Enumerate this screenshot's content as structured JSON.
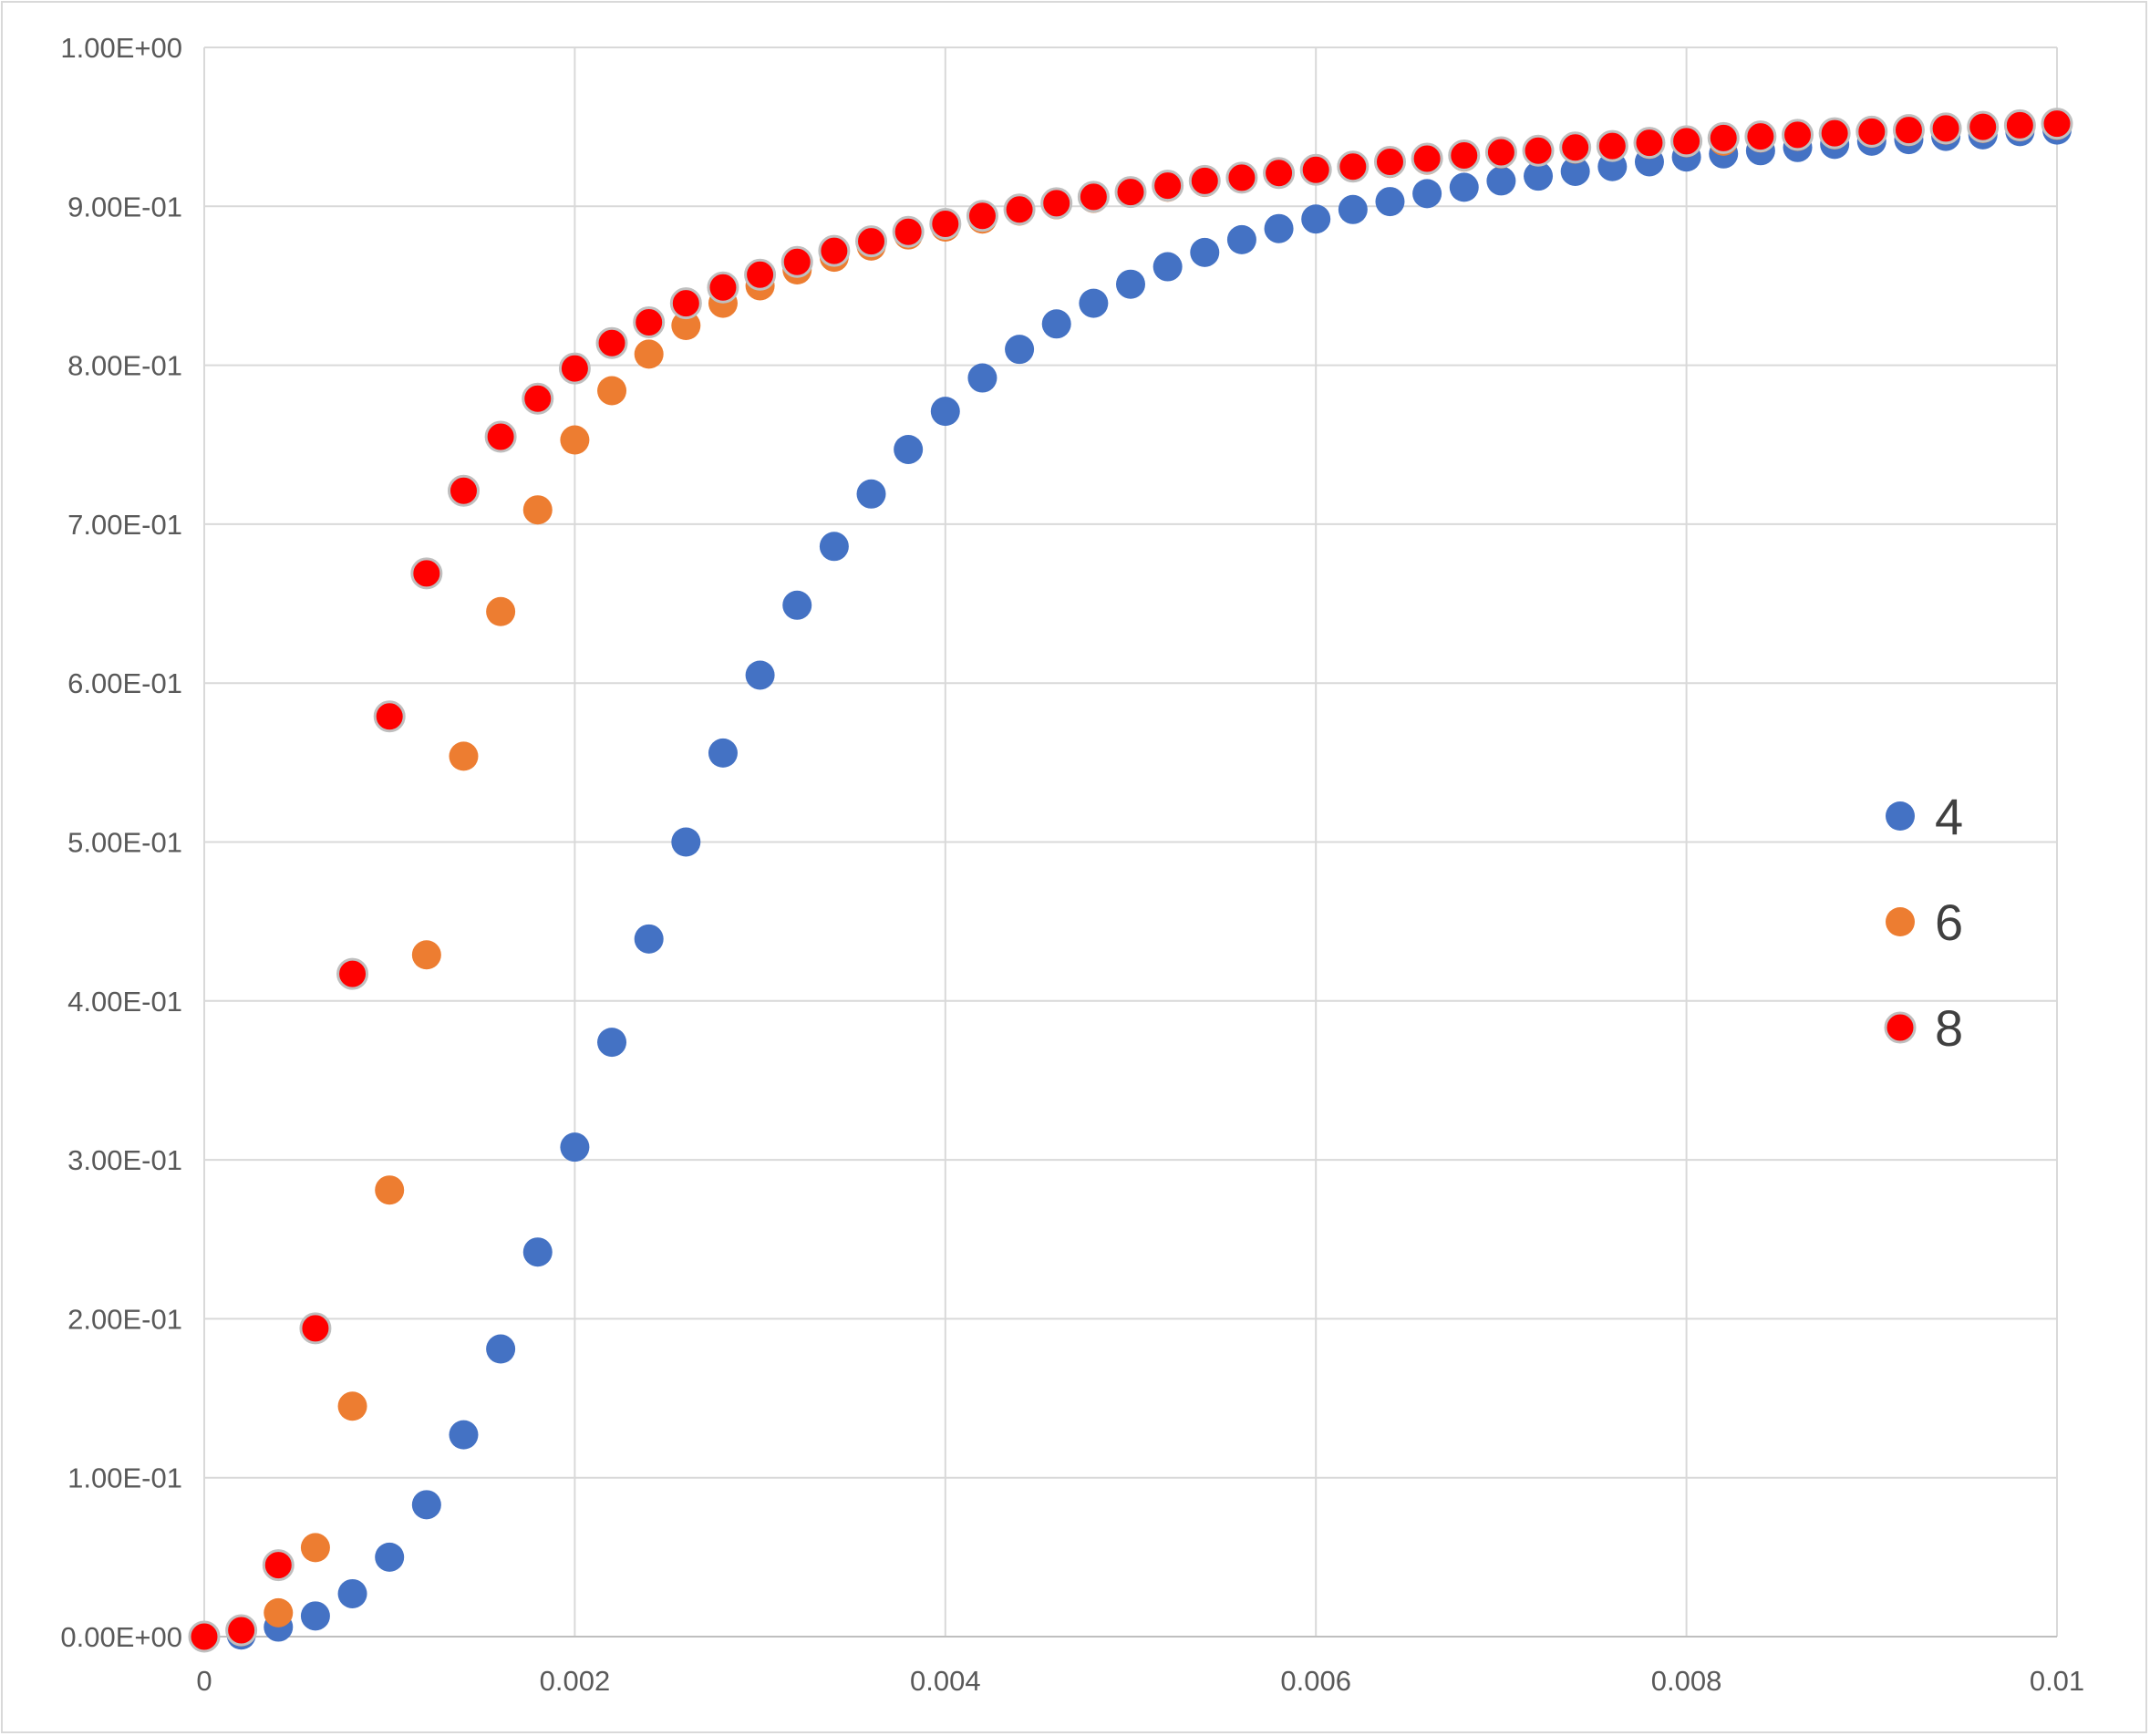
{
  "chart_data": {
    "type": "scatter",
    "title": "",
    "xlabel": "",
    "ylabel": "",
    "xlim": [
      0,
      0.01
    ],
    "ylim": [
      0,
      1
    ],
    "grid": true,
    "legend_position": "right",
    "x_ticks": [
      "0",
      "0.002",
      "0.004",
      "0.006",
      "0.008",
      "0.01"
    ],
    "y_ticks": [
      "0.00E+00",
      "1.00E-01",
      "2.00E-01",
      "3.00E-01",
      "4.00E-01",
      "5.00E-01",
      "6.00E-01",
      "7.00E-01",
      "8.00E-01",
      "9.00E-01",
      "1.00E+00"
    ],
    "series": [
      {
        "name": "4",
        "color": "#4472C4",
        "x": [
          0,
          0.0002,
          0.0004,
          0.0006,
          0.0008,
          0.001,
          0.0012,
          0.0014,
          0.0016,
          0.0018,
          0.002,
          0.0022,
          0.0024,
          0.0026,
          0.0028,
          0.003,
          0.0032,
          0.0034,
          0.0036,
          0.0038,
          0.004,
          0.0042,
          0.0044,
          0.0046,
          0.0048,
          0.005,
          0.0052,
          0.0054,
          0.0056,
          0.0058,
          0.006,
          0.0062,
          0.0064,
          0.0066,
          0.0068,
          0.007,
          0.0072,
          0.0074,
          0.0076,
          0.0078,
          0.008,
          0.0082,
          0.0084,
          0.0086,
          0.0088,
          0.009,
          0.0092,
          0.0094,
          0.0096,
          0.0098,
          0.01
        ],
        "y": [
          0.0,
          0.001,
          0.006,
          0.013,
          0.027,
          0.05,
          0.083,
          0.127,
          0.181,
          0.242,
          0.308,
          0.374,
          0.439,
          0.5,
          0.556,
          0.605,
          0.649,
          0.686,
          0.719,
          0.747,
          0.771,
          0.792,
          0.81,
          0.826,
          0.839,
          0.851,
          0.862,
          0.871,
          0.879,
          0.886,
          0.892,
          0.898,
          0.903,
          0.908,
          0.912,
          0.916,
          0.919,
          0.922,
          0.925,
          0.928,
          0.931,
          0.933,
          0.935,
          0.937,
          0.939,
          0.941,
          0.942,
          0.944,
          0.945,
          0.947,
          0.948
        ]
      },
      {
        "name": "6",
        "color": "#ED7D31",
        "x": [
          0,
          0.0002,
          0.0004,
          0.0006,
          0.0008,
          0.001,
          0.0012,
          0.0014,
          0.0016,
          0.0018,
          0.002,
          0.0022,
          0.0024,
          0.0026,
          0.0028,
          0.003,
          0.0032,
          0.0034,
          0.0036,
          0.0038,
          0.004,
          0.0042,
          0.0044,
          0.0046,
          0.0048,
          0.005,
          0.0052,
          0.0054,
          0.0056,
          0.0058,
          0.006,
          0.0062,
          0.0064,
          0.0066,
          0.0068,
          0.007,
          0.0072,
          0.0074,
          0.0076,
          0.0078,
          0.008,
          0.0082,
          0.0084,
          0.0086,
          0.0088,
          0.009,
          0.0092,
          0.0094,
          0.0096,
          0.0098,
          0.01
        ],
        "y": [
          0.0,
          0.003,
          0.015,
          0.056,
          0.145,
          0.281,
          0.429,
          0.554,
          0.645,
          0.709,
          0.753,
          0.784,
          0.807,
          0.825,
          0.839,
          0.85,
          0.86,
          0.868,
          0.875,
          0.882,
          0.887,
          0.892,
          0.897,
          0.901,
          0.905,
          0.909,
          0.912,
          0.915,
          0.918,
          0.921,
          0.923,
          0.925,
          0.927,
          0.929,
          0.931,
          0.933,
          0.935,
          0.936,
          0.938,
          0.939,
          0.94,
          0.941,
          0.943,
          0.944,
          0.945,
          0.946,
          0.947,
          0.948,
          0.949,
          0.95,
          0.951
        ]
      },
      {
        "name": "8",
        "color": "#FF0000",
        "x": [
          0,
          0.0002,
          0.0004,
          0.0006,
          0.0008,
          0.001,
          0.0012,
          0.0014,
          0.0016,
          0.0018,
          0.002,
          0.0022,
          0.0024,
          0.0026,
          0.0028,
          0.003,
          0.0032,
          0.0034,
          0.0036,
          0.0038,
          0.004,
          0.0042,
          0.0044,
          0.0046,
          0.0048,
          0.005,
          0.0052,
          0.0054,
          0.0056,
          0.0058,
          0.006,
          0.0062,
          0.0064,
          0.0066,
          0.0068,
          0.007,
          0.0072,
          0.0074,
          0.0076,
          0.0078,
          0.008,
          0.0082,
          0.0084,
          0.0086,
          0.0088,
          0.009,
          0.0092,
          0.0094,
          0.0096,
          0.0098,
          0.01
        ],
        "y": [
          0.0,
          0.004,
          0.045,
          0.194,
          0.417,
          0.579,
          0.669,
          0.721,
          0.755,
          0.779,
          0.798,
          0.814,
          0.827,
          0.839,
          0.849,
          0.857,
          0.865,
          0.872,
          0.878,
          0.884,
          0.889,
          0.894,
          0.898,
          0.902,
          0.906,
          0.909,
          0.913,
          0.916,
          0.918,
          0.921,
          0.923,
          0.925,
          0.928,
          0.93,
          0.932,
          0.934,
          0.935,
          0.937,
          0.938,
          0.94,
          0.941,
          0.943,
          0.944,
          0.945,
          0.946,
          0.947,
          0.948,
          0.949,
          0.95,
          0.951,
          0.952
        ]
      }
    ]
  }
}
